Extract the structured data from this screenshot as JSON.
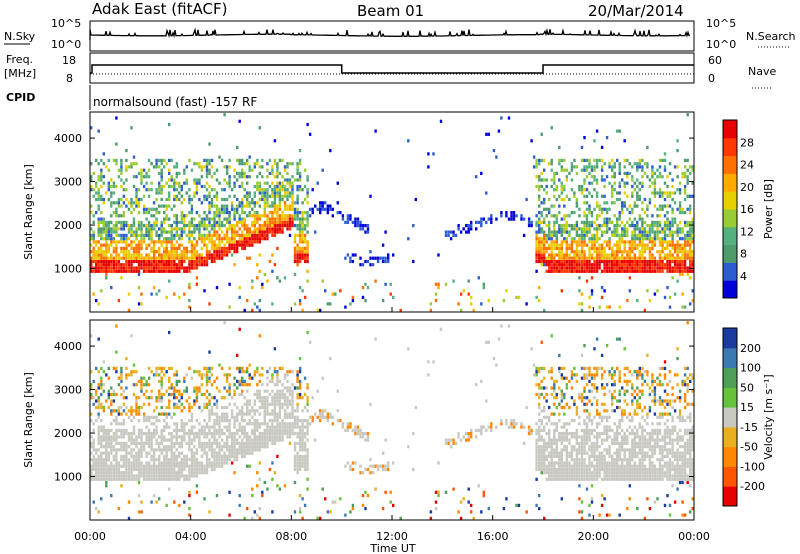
{
  "header": {
    "title": "Adak East (fitACF)",
    "beam": "Beam 01",
    "date": "20/Mar/2014"
  },
  "top_panels": {
    "nsky_label": "N.Sky",
    "nsky_ticks": [
      "10^5",
      "10^0"
    ],
    "nsearch_label": "N.Search",
    "nsearch_ticks": [
      "10^5",
      "10^0"
    ],
    "freq_label_1": "Freq.",
    "freq_label_2": "[MHz]",
    "freq_ticks": [
      "18",
      "8"
    ],
    "nave_label": "Nave",
    "nave_ticks": [
      "60",
      "0"
    ],
    "cpid_label": "CPID",
    "cpid_text": "normalsound (fast) -157 RF"
  },
  "chart_data": [
    {
      "type": "heatmap",
      "name": "power",
      "ylabel": "Slant Range [km]",
      "xlabel": "Time UT",
      "y_ticks": [
        "1000",
        "2000",
        "3000",
        "4000"
      ],
      "yrange": [
        0,
        4600
      ],
      "x_ticks": [
        "00:00",
        "04:00",
        "08:00",
        "12:00",
        "16:00",
        "20:00",
        "00:00"
      ],
      "xrange_hours": [
        0,
        24
      ],
      "colorbar": {
        "label": "Power [dB]",
        "ticks": [
          "4",
          "8",
          "12",
          "16",
          "20",
          "24",
          "28"
        ],
        "range": [
          0,
          30
        ],
        "colors": [
          "#0000d8",
          "#2d5bd0",
          "#4d9a6a",
          "#55b080",
          "#99cc33",
          "#e8d000",
          "#ffaa00",
          "#ff7000",
          "#ff3800",
          "#e60000"
        ]
      }
    },
    {
      "type": "heatmap",
      "name": "velocity",
      "ylabel": "Slant Range [km]",
      "xlabel": "Time UT",
      "y_ticks": [
        "1000",
        "2000",
        "3000",
        "4000"
      ],
      "yrange": [
        0,
        4600
      ],
      "x_ticks": [
        "00:00",
        "04:00",
        "08:00",
        "12:00",
        "16:00",
        "20:00",
        "00:00"
      ],
      "xrange_hours": [
        0,
        24
      ],
      "colorbar": {
        "label": "Velocity [m s⁻¹]",
        "ticks": [
          "200",
          "100",
          "50",
          "15",
          "-15",
          "-50",
          "-100",
          "-200"
        ],
        "colors": [
          "#1a3aa0",
          "#3a7ab0",
          "#4f9e57",
          "#66c23a",
          "#c8c8c0",
          "#e8b020",
          "#ff8800",
          "#ff5500",
          "#e60000"
        ]
      }
    }
  ]
}
